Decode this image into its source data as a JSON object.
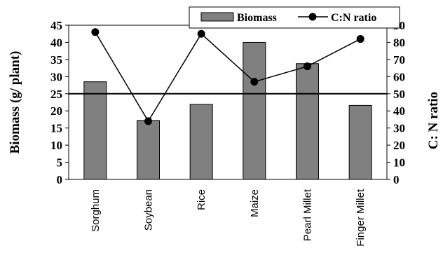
{
  "chart_data": {
    "type": "bar",
    "categories": [
      "Sorghum",
      "Soybean",
      "Rice",
      "Maize",
      "Pearl Millet",
      "Finger Millet"
    ],
    "series": [
      {
        "name": "Biomass",
        "type": "bar",
        "axis": "left",
        "values": [
          28.5,
          17.2,
          21.9,
          40.0,
          33.8,
          21.6
        ],
        "color": "#808080"
      },
      {
        "name": "C:N ratio",
        "type": "line",
        "axis": "right",
        "values": [
          86,
          34,
          85,
          57,
          66,
          82
        ],
        "color": "#000000"
      }
    ],
    "reference_line": {
      "axis": "right",
      "value": 50
    },
    "left_axis": {
      "label": "Biomass (g/ plant)",
      "range": [
        0,
        45
      ],
      "ticks": [
        "0",
        "5",
        "10",
        "15",
        "20",
        "25",
        "30",
        "35",
        "40",
        "45"
      ]
    },
    "right_axis": {
      "label": "C: N ratio",
      "range": [
        0,
        90
      ],
      "ticks": [
        "0",
        "10",
        "20",
        "30",
        "40",
        "50",
        "60",
        "70",
        "80",
        "90"
      ]
    },
    "legend": {
      "placement": "top-right",
      "entries": [
        "Biomass",
        "C:N ratio"
      ]
    },
    "grid": false
  }
}
